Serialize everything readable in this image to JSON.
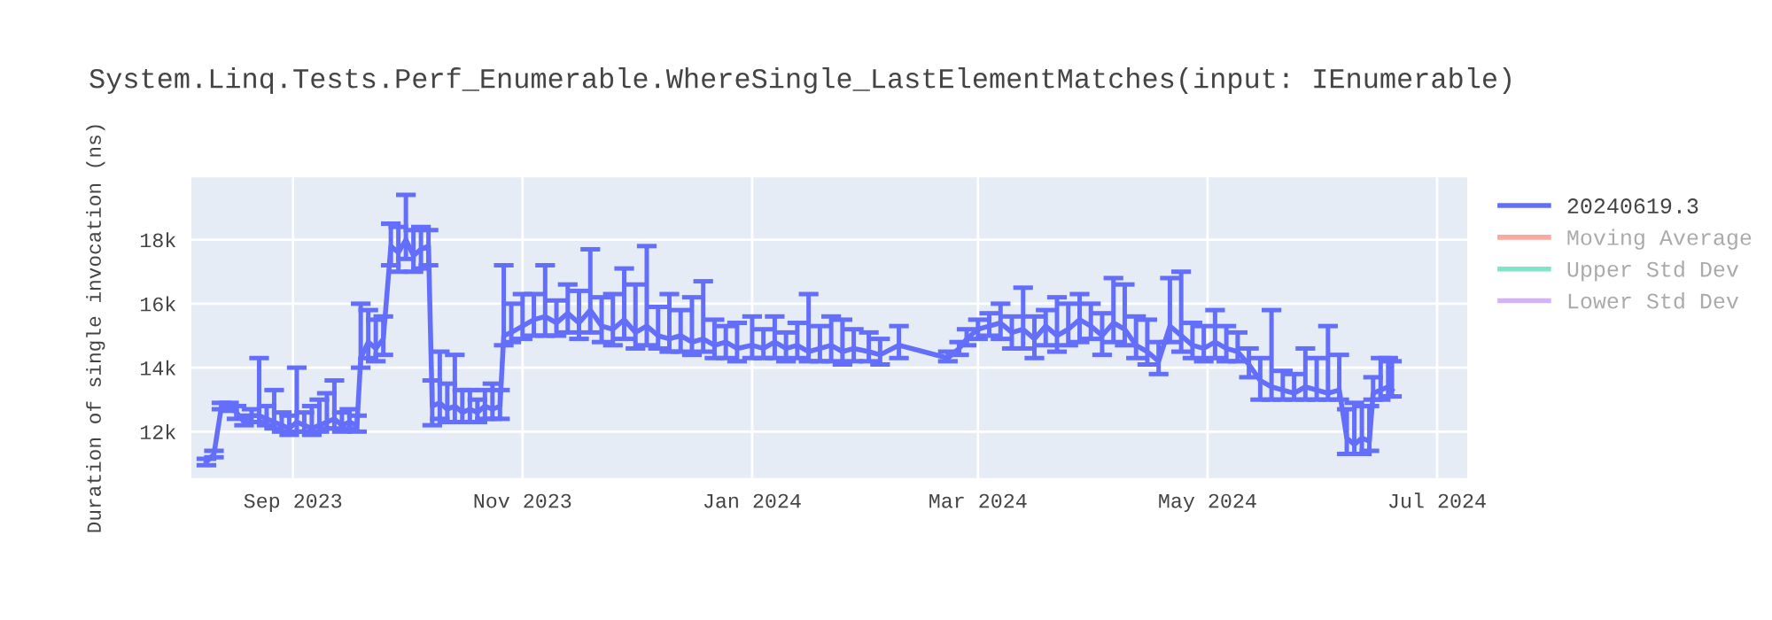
{
  "chart_data": {
    "type": "line",
    "title": "System.Linq.Tests.Perf_Enumerable.WhereSingle_LastElementMatches(input: IEnumerable)",
    "ylabel": "Duration of single invocation (ns)",
    "xlim": [
      "2023-08-05",
      "2024-07-09"
    ],
    "xticks": [
      {
        "value": "2023-09-01",
        "label": "Sep 2023"
      },
      {
        "value": "2023-11-01",
        "label": "Nov 2023"
      },
      {
        "value": "2024-01-01",
        "label": "Jan 2024"
      },
      {
        "value": "2024-03-01",
        "label": "Mar 2024"
      },
      {
        "value": "2024-05-01",
        "label": "May 2024"
      },
      {
        "value": "2024-07-01",
        "label": "Jul 2024"
      }
    ],
    "ylim": [
      10550,
      19950
    ],
    "yticks": [
      {
        "value": 12000,
        "label": "12k"
      },
      {
        "value": 14000,
        "label": "14k"
      },
      {
        "value": 16000,
        "label": "16k"
      },
      {
        "value": 18000,
        "label": "18k"
      }
    ],
    "grid": true,
    "legend": "right",
    "marker": "none",
    "line_style": "solid",
    "x": [
      "2023-08-09",
      "2023-08-11",
      "2023-08-13",
      "2023-08-15",
      "2023-08-17",
      "2023-08-19",
      "2023-08-21",
      "2023-08-23",
      "2023-08-25",
      "2023-08-27",
      "2023-08-29",
      "2023-08-31",
      "2023-09-02",
      "2023-09-04",
      "2023-09-06",
      "2023-09-08",
      "2023-09-10",
      "2023-09-12",
      "2023-09-14",
      "2023-09-16",
      "2023-09-18",
      "2023-09-19",
      "2023-09-21",
      "2023-09-23",
      "2023-09-25",
      "2023-09-27",
      "2023-09-29",
      "2023-10-01",
      "2023-10-03",
      "2023-10-05",
      "2023-10-07",
      "2023-10-08",
      "2023-10-10",
      "2023-10-12",
      "2023-10-14",
      "2023-10-16",
      "2023-10-18",
      "2023-10-20",
      "2023-10-22",
      "2023-10-24",
      "2023-10-26",
      "2023-10-27",
      "2023-10-29",
      "2023-11-01",
      "2023-11-04",
      "2023-11-07",
      "2023-11-10",
      "2023-11-13",
      "2023-11-16",
      "2023-11-19",
      "2023-11-22",
      "2023-11-25",
      "2023-11-28",
      "2023-12-01",
      "2023-12-04",
      "2023-12-07",
      "2023-12-10",
      "2023-12-13",
      "2023-12-16",
      "2023-12-19",
      "2023-12-22",
      "2023-12-25",
      "2023-12-28",
      "2024-01-01",
      "2024-01-04",
      "2024-01-07",
      "2024-01-10",
      "2024-01-13",
      "2024-01-16",
      "2024-01-19",
      "2024-01-22",
      "2024-01-25",
      "2024-01-28",
      "2024-02-01",
      "2024-02-04",
      "2024-02-09",
      "2024-02-22",
      "2024-02-25",
      "2024-02-27",
      "2024-03-01",
      "2024-03-04",
      "2024-03-07",
      "2024-03-10",
      "2024-03-13",
      "2024-03-16",
      "2024-03-19",
      "2024-03-22",
      "2024-03-25",
      "2024-03-28",
      "2024-03-31",
      "2024-04-03",
      "2024-04-06",
      "2024-04-09",
      "2024-04-12",
      "2024-04-15",
      "2024-04-18",
      "2024-04-21",
      "2024-04-24",
      "2024-04-27",
      "2024-04-30",
      "2024-05-03",
      "2024-05-06",
      "2024-05-09",
      "2024-05-12",
      "2024-05-15",
      "2024-05-18",
      "2024-05-21",
      "2024-05-24",
      "2024-05-27",
      "2024-05-30",
      "2024-06-02",
      "2024-06-05",
      "2024-06-07",
      "2024-06-09",
      "2024-06-11",
      "2024-06-13",
      "2024-06-14",
      "2024-06-16",
      "2024-06-18",
      "2024-06-19"
    ],
    "series": [
      {
        "name": "20240619.3",
        "color": "#636efa",
        "values": [
          11050,
          11300,
          12800,
          12800,
          12600,
          12300,
          12500,
          12500,
          12400,
          12300,
          12200,
          12100,
          12300,
          12200,
          12100,
          12200,
          12300,
          12400,
          12200,
          12300,
          12200,
          14300,
          14800,
          14600,
          14900,
          17800,
          17600,
          18000,
          17500,
          17700,
          17800,
          12800,
          12900,
          12700,
          12800,
          12600,
          12700,
          12600,
          12800,
          12700,
          12800,
          15000,
          15100,
          15300,
          15500,
          15600,
          15400,
          15700,
          15400,
          15800,
          15300,
          15200,
          15500,
          15100,
          15300,
          15000,
          14900,
          15000,
          14800,
          14900,
          14700,
          14800,
          14600,
          14700,
          14600,
          14800,
          14600,
          14700,
          14500,
          14600,
          14700,
          14500,
          14600,
          14500,
          14400,
          14700,
          14300,
          14600,
          14900,
          15200,
          15300,
          15400,
          15100,
          15200,
          14900,
          15300,
          15000,
          15200,
          15500,
          15300,
          15000,
          15400,
          15200,
          14700,
          14500,
          14200,
          15300,
          15000,
          14700,
          14600,
          14800,
          14600,
          14500,
          14100,
          13600,
          13400,
          13300,
          13200,
          13400,
          13300,
          13200,
          13300,
          11800,
          11600,
          11800,
          11700,
          13200,
          13300,
          13400,
          13300
        ],
        "errors": [
          [
            10950,
            11150
          ],
          [
            11200,
            11400
          ],
          [
            12700,
            12900
          ],
          [
            12650,
            12900
          ],
          [
            12400,
            12800
          ],
          [
            12200,
            12500
          ],
          [
            12300,
            12700
          ],
          [
            12300,
            14300
          ],
          [
            12200,
            12800
          ],
          [
            12100,
            13300
          ],
          [
            12000,
            12600
          ],
          [
            11900,
            12500
          ],
          [
            12000,
            14000
          ],
          [
            12000,
            12600
          ],
          [
            11900,
            12800
          ],
          [
            12000,
            13000
          ],
          [
            12100,
            13200
          ],
          [
            12100,
            13600
          ],
          [
            12000,
            12600
          ],
          [
            12100,
            12700
          ],
          [
            12000,
            12500
          ],
          [
            14000,
            16000
          ],
          [
            14300,
            15800
          ],
          [
            14200,
            15500
          ],
          [
            14400,
            15600
          ],
          [
            17200,
            18500
          ],
          [
            17000,
            18400
          ],
          [
            17400,
            19400
          ],
          [
            17000,
            18300
          ],
          [
            17100,
            18400
          ],
          [
            17200,
            18300
          ],
          [
            12200,
            13600
          ],
          [
            12400,
            14500
          ],
          [
            12300,
            13500
          ],
          [
            12300,
            14400
          ],
          [
            12300,
            13300
          ],
          [
            12300,
            13300
          ],
          [
            12300,
            13000
          ],
          [
            12400,
            13300
          ],
          [
            12400,
            13500
          ],
          [
            12400,
            13300
          ],
          [
            14700,
            17200
          ],
          [
            14800,
            16000
          ],
          [
            14900,
            16300
          ],
          [
            15000,
            16300
          ],
          [
            15000,
            17200
          ],
          [
            15000,
            16100
          ],
          [
            15100,
            16600
          ],
          [
            14900,
            16400
          ],
          [
            15100,
            17700
          ],
          [
            14800,
            16200
          ],
          [
            14700,
            16300
          ],
          [
            14900,
            17100
          ],
          [
            14600,
            16600
          ],
          [
            14700,
            17800
          ],
          [
            14600,
            15900
          ],
          [
            14500,
            16300
          ],
          [
            14500,
            15800
          ],
          [
            14400,
            16200
          ],
          [
            14500,
            16700
          ],
          [
            14300,
            15500
          ],
          [
            14300,
            15300
          ],
          [
            14200,
            15400
          ],
          [
            14300,
            15600
          ],
          [
            14300,
            15200
          ],
          [
            14300,
            15600
          ],
          [
            14200,
            15100
          ],
          [
            14300,
            15400
          ],
          [
            14200,
            16300
          ],
          [
            14200,
            15300
          ],
          [
            14200,
            15600
          ],
          [
            14100,
            15500
          ],
          [
            14200,
            15200
          ],
          [
            14200,
            15100
          ],
          [
            14100,
            14900
          ],
          [
            14300,
            15300
          ],
          [
            14200,
            14500
          ],
          [
            14400,
            14800
          ],
          [
            14700,
            15200
          ],
          [
            14900,
            15500
          ],
          [
            15000,
            15700
          ],
          [
            14900,
            16000
          ],
          [
            14600,
            15600
          ],
          [
            14600,
            16500
          ],
          [
            14300,
            15600
          ],
          [
            14700,
            15800
          ],
          [
            14500,
            16200
          ],
          [
            14700,
            16000
          ],
          [
            14800,
            16300
          ],
          [
            14900,
            16000
          ],
          [
            14400,
            15700
          ],
          [
            14800,
            16800
          ],
          [
            14700,
            16600
          ],
          [
            14300,
            15600
          ],
          [
            14100,
            15500
          ],
          [
            13800,
            14800
          ],
          [
            14800,
            16800
          ],
          [
            14500,
            17000
          ],
          [
            14300,
            15400
          ],
          [
            14200,
            15300
          ],
          [
            14300,
            15800
          ],
          [
            14200,
            15300
          ],
          [
            14200,
            15100
          ],
          [
            13700,
            14600
          ],
          [
            13000,
            14300
          ],
          [
            13000,
            15800
          ],
          [
            13000,
            13900
          ],
          [
            13000,
            13800
          ],
          [
            13000,
            14600
          ],
          [
            13000,
            14300
          ],
          [
            13000,
            15300
          ],
          [
            13000,
            14400
          ],
          [
            11300,
            12700
          ],
          [
            11300,
            12900
          ],
          [
            11300,
            12800
          ],
          [
            11400,
            12800
          ],
          [
            13000,
            13700
          ],
          [
            13000,
            14300
          ],
          [
            13100,
            14300
          ],
          [
            13100,
            14200
          ]
        ]
      },
      {
        "name": "Moving Average",
        "color": "#ef553b",
        "values": [
          null,
          null,
          null,
          null,
          null,
          null,
          null,
          null,
          null,
          null,
          null,
          null,
          null,
          null,
          null,
          null,
          null,
          null,
          null,
          null,
          null,
          null,
          null,
          null,
          null,
          null,
          null,
          null,
          null,
          null,
          null,
          null,
          null,
          null,
          null,
          null,
          null,
          null,
          null,
          null,
          null,
          null,
          null,
          null,
          null,
          null,
          null,
          null,
          null,
          null,
          null,
          null,
          null,
          null,
          null,
          null,
          null,
          null,
          null,
          null,
          null,
          null,
          null,
          null,
          null,
          null,
          null,
          null,
          null,
          null,
          null,
          null,
          null,
          null,
          null,
          null,
          null,
          null,
          null,
          null,
          null,
          null,
          null,
          null,
          null,
          null,
          null,
          null,
          null,
          null,
          null,
          null,
          null,
          null,
          null,
          null,
          null,
          null,
          null,
          null,
          null,
          null,
          null,
          null,
          null,
          null,
          null,
          null,
          null,
          null,
          null,
          null,
          null,
          null,
          null,
          null,
          null,
          null,
          null,
          null
        ]
      },
      {
        "name": "Upper Std Dev",
        "color": "#00cc96",
        "values": [
          null,
          null,
          null,
          null,
          null,
          null,
          null,
          null,
          null,
          null,
          null,
          null,
          null,
          null,
          null,
          null,
          null,
          null,
          null,
          null,
          null,
          null,
          null,
          null,
          null,
          null,
          null,
          null,
          null,
          null,
          null,
          null,
          null,
          null,
          null,
          null,
          null,
          null,
          null,
          null,
          null,
          null,
          null,
          null,
          null,
          null,
          null,
          null,
          null,
          null,
          null,
          null,
          null,
          null,
          null,
          null,
          null,
          null,
          null,
          null,
          null,
          null,
          null,
          null,
          null,
          null,
          null,
          null,
          null,
          null,
          null,
          null,
          null,
          null,
          null,
          null,
          null,
          null,
          null,
          null,
          null,
          null,
          null,
          null,
          null,
          null,
          null,
          null,
          null,
          null,
          null,
          null,
          null,
          null,
          null,
          null,
          null,
          null,
          null,
          null,
          null,
          null,
          null,
          null,
          null,
          null,
          null,
          null,
          null,
          null,
          null,
          null,
          null,
          null,
          null,
          null,
          null,
          null,
          null,
          null
        ]
      },
      {
        "name": "Lower Std Dev",
        "color": "#ab63fa",
        "values": [
          null,
          null,
          null,
          null,
          null,
          null,
          null,
          null,
          null,
          null,
          null,
          null,
          null,
          null,
          null,
          null,
          null,
          null,
          null,
          null,
          null,
          null,
          null,
          null,
          null,
          null,
          null,
          null,
          null,
          null,
          null,
          null,
          null,
          null,
          null,
          null,
          null,
          null,
          null,
          null,
          null,
          null,
          null,
          null,
          null,
          null,
          null,
          null,
          null,
          null,
          null,
          null,
          null,
          null,
          null,
          null,
          null,
          null,
          null,
          null,
          null,
          null,
          null,
          null,
          null,
          null,
          null,
          null,
          null,
          null,
          null,
          null,
          null,
          null,
          null,
          null,
          null,
          null,
          null,
          null,
          null,
          null,
          null,
          null,
          null,
          null,
          null,
          null,
          null,
          null,
          null,
          null,
          null,
          null,
          null,
          null,
          null,
          null,
          null,
          null,
          null,
          null,
          null,
          null,
          null,
          null,
          null,
          null,
          null,
          null,
          null,
          null,
          null,
          null,
          null,
          null,
          null,
          null,
          null,
          null
        ]
      }
    ]
  }
}
